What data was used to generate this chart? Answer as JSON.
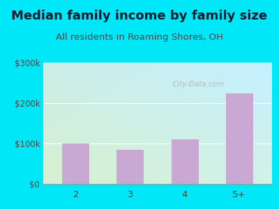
{
  "title": "Median family income by family size",
  "subtitle": "All residents in Roaming Shores, OH",
  "categories": [
    "2",
    "3",
    "4",
    "5+"
  ],
  "values": [
    100000,
    85000,
    110000,
    225000
  ],
  "bar_color": "#c9a8d4",
  "title_fontsize": 13,
  "subtitle_fontsize": 9.5,
  "tick_color": "#5a3e3e",
  "label_color": "#4a4a6a",
  "bg_outer": "#00e8f8",
  "bg_plot_topleft": "#d0f0f0",
  "bg_plot_bottomleft": "#d8f0d0",
  "bg_plot_topright": "#c8eee8",
  "ylim": [
    0,
    300000
  ],
  "yticks": [
    0,
    100000,
    200000,
    300000
  ],
  "ytick_labels": [
    "$0",
    "$100k",
    "$200k",
    "$300k"
  ],
  "watermark": "City-Data.com"
}
